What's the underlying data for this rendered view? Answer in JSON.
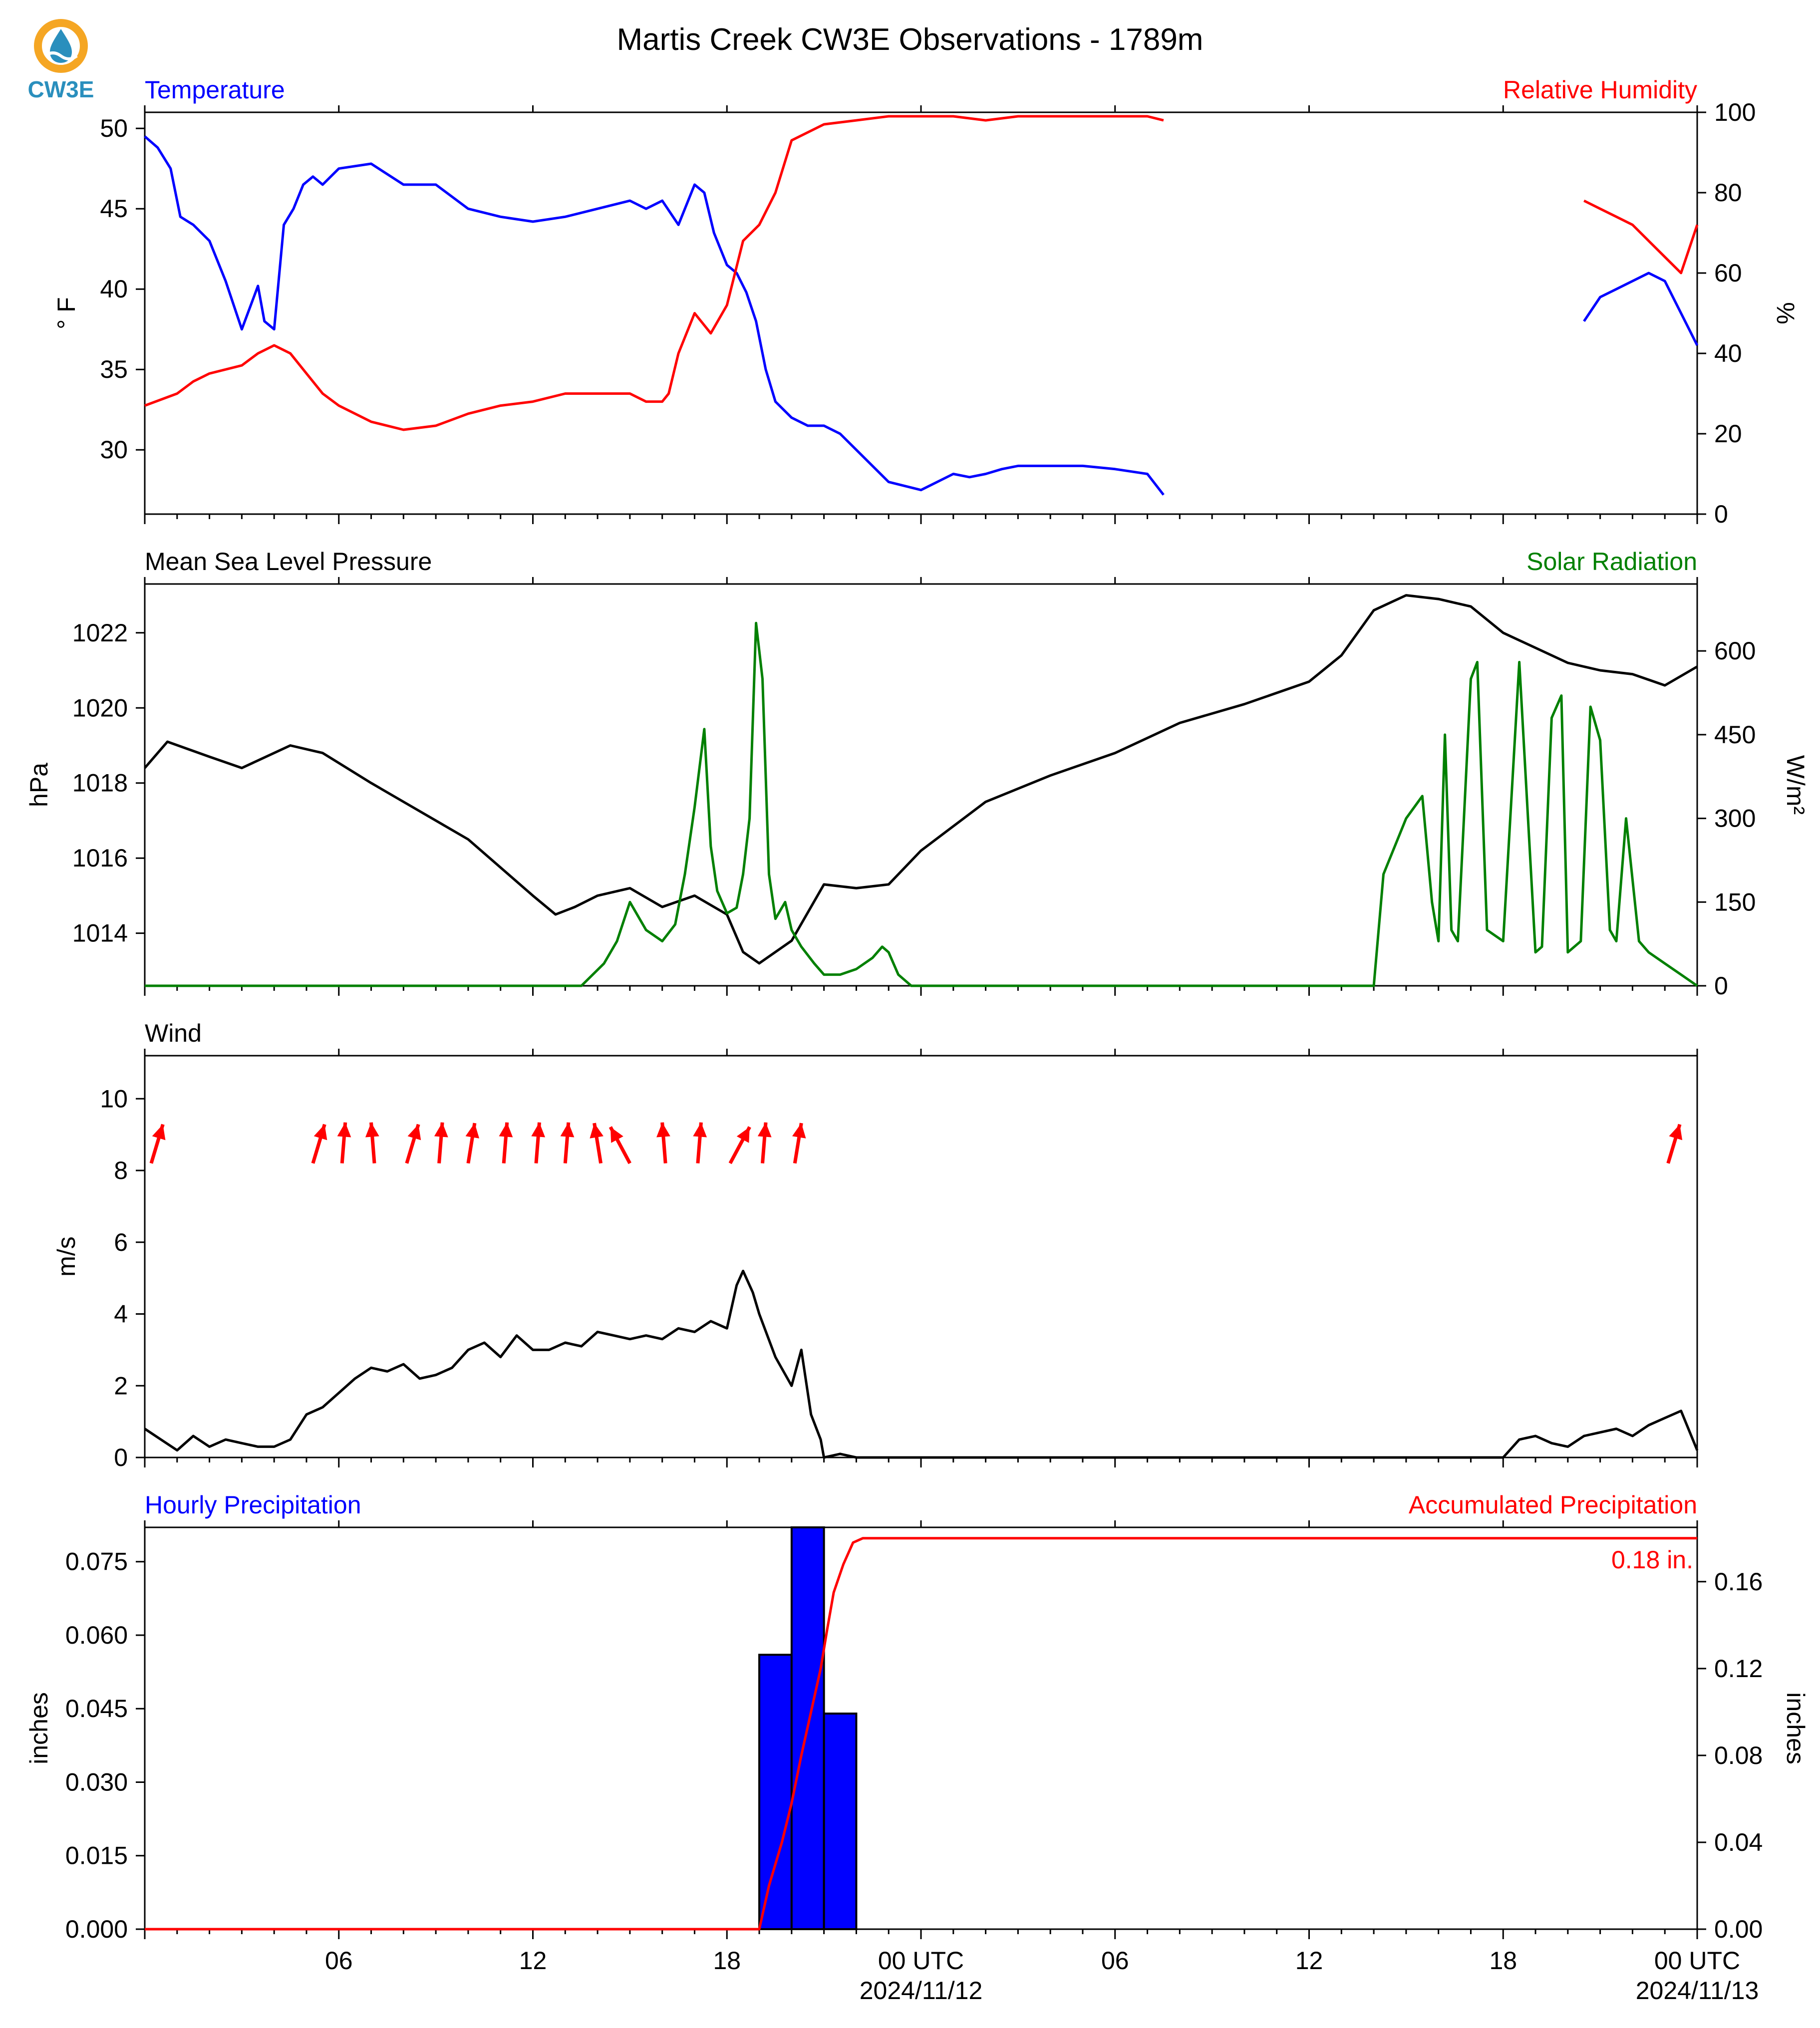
{
  "logo": {
    "text": "CW3E",
    "ring_color": "#f5a623",
    "drop_color": "#2a8fbd"
  },
  "title": "Martis Creek CW3E Observations - 1789m",
  "x_axis": {
    "hours_total": 48,
    "tick_labels": [
      {
        "hour": 6,
        "label": "06"
      },
      {
        "hour": 12,
        "label": "12"
      },
      {
        "hour": 18,
        "label": "18"
      },
      {
        "hour": 24,
        "label": "00 UTC"
      },
      {
        "hour": 30,
        "label": "06"
      },
      {
        "hour": 36,
        "label": "12"
      },
      {
        "hour": 42,
        "label": "18"
      },
      {
        "hour": 48,
        "label": "00 UTC"
      }
    ],
    "date_labels": [
      {
        "hour": 24,
        "label": "2024/11/12"
      },
      {
        "hour": 48,
        "label": "2024/11/13"
      }
    ]
  },
  "panels": {
    "temp_rh": {
      "left_title": "Temperature",
      "right_title": "Relative Humidity",
      "left_ylabel": "° F",
      "right_ylabel": "%",
      "left_ticks": [
        "30",
        "35",
        "40",
        "45",
        "50"
      ],
      "right_ticks": [
        "0",
        "20",
        "40",
        "60",
        "80",
        "100"
      ]
    },
    "pressure_solar": {
      "left_title": "Mean Sea Level Pressure",
      "right_title": "Solar Radiation",
      "left_ylabel": "hPa",
      "right_ylabel": "W/m²",
      "left_ticks": [
        "1014",
        "1016",
        "1018",
        "1020",
        "1022"
      ],
      "right_ticks": [
        "0",
        "150",
        "300",
        "450",
        "600"
      ]
    },
    "wind": {
      "left_title": "Wind",
      "left_ylabel": "m/s",
      "left_ticks": [
        "0",
        "2",
        "4",
        "6",
        "8",
        "10"
      ]
    },
    "precip": {
      "left_title": "Hourly Precipitation",
      "right_title": "Accumulated Precipitation",
      "left_ylabel": "inches",
      "right_ylabel": "inches",
      "left_ticks": [
        "0.000",
        "0.015",
        "0.030",
        "0.045",
        "0.060",
        "0.075"
      ],
      "right_ticks": [
        "0.00",
        "0.04",
        "0.08",
        "0.12",
        "0.16"
      ],
      "total_label": "0.18 in."
    }
  },
  "colors": {
    "temperature": "#0000ff",
    "humidity": "#ff0000",
    "pressure": "#000000",
    "solar": "#008000",
    "wind": "#000000",
    "wind_arrows": "#ff0000",
    "hourly_bars": "#0000ff",
    "accumulated": "#ff0000"
  },
  "chart_data": [
    {
      "type": "line",
      "title": "Temperature",
      "ylabel": "° F",
      "ylim": [
        26,
        51
      ],
      "x_units": "hours since 2024/11/11 00 UTC",
      "series": [
        {
          "name": "Temperature",
          "x": [
            0,
            0.4,
            0.8,
            1.1,
            1.5,
            2,
            2.5,
            3,
            3.5,
            3.7,
            4,
            4.3,
            4.6,
            4.9,
            5.2,
            5.5,
            6,
            7,
            8,
            9,
            10,
            11,
            12,
            13,
            14,
            15,
            15.5,
            16,
            16.5,
            17,
            17.3,
            17.6,
            18,
            18.3,
            18.6,
            18.9,
            19.2,
            19.5,
            20,
            20.5,
            21,
            21.5,
            22,
            23,
            24,
            25,
            25.5,
            26,
            26.5,
            27,
            28,
            29,
            30,
            31,
            31.5
          ],
          "values": [
            49.5,
            48.8,
            47.5,
            44.5,
            44,
            43,
            40.5,
            37.5,
            40.2,
            38,
            37.5,
            44,
            45,
            46.5,
            47,
            46.5,
            47.5,
            47.8,
            46.5,
            46.5,
            45,
            44.5,
            44.2,
            44.5,
            45,
            45.5,
            45,
            45.5,
            44,
            46.5,
            46,
            43.5,
            41.5,
            41,
            39.8,
            38,
            35,
            33,
            32,
            31.5,
            31.5,
            31,
            30,
            28,
            27.5,
            28.5,
            28.3,
            28.5,
            28.8,
            29,
            29,
            29,
            28.8,
            28.5,
            27.2
          ]
        },
        {
          "name": "Temperature (later)",
          "x": [
            44.5,
            45,
            45.5,
            46,
            46.5,
            47,
            47.5,
            48
          ],
          "values": [
            38,
            39.5,
            40,
            40.5,
            41,
            40.5,
            38.5,
            36.5
          ]
        }
      ]
    },
    {
      "type": "line",
      "title": "Relative Humidity",
      "ylabel": "%",
      "ylim": [
        0,
        100
      ],
      "series": [
        {
          "name": "Relative Humidity",
          "x": [
            0,
            1,
            1.5,
            2,
            3,
            3.5,
            4,
            4.5,
            5,
            5.5,
            6,
            7,
            8,
            9,
            10,
            11,
            12,
            13,
            14,
            15,
            15.5,
            16,
            16.2,
            16.5,
            17,
            17.5,
            18,
            18.5,
            19,
            19.5,
            20,
            21,
            22,
            23,
            24,
            25,
            26,
            27,
            28,
            29,
            30,
            31,
            31.5
          ],
          "values": [
            27,
            30,
            33,
            35,
            37,
            40,
            42,
            40,
            35,
            30,
            27,
            23,
            21,
            22,
            25,
            27,
            28,
            30,
            30,
            30,
            28,
            28,
            30,
            40,
            50,
            45,
            52,
            68,
            72,
            80,
            93,
            97,
            98,
            99,
            99,
            99,
            98,
            99,
            99,
            99,
            99,
            99,
            98
          ]
        },
        {
          "name": "Relative Humidity (later)",
          "x": [
            44.5,
            45,
            45.5,
            46,
            46.5,
            47,
            47.5,
            48
          ],
          "values": [
            78,
            76,
            74,
            72,
            68,
            64,
            60,
            72
          ]
        }
      ]
    },
    {
      "type": "line",
      "title": "Mean Sea Level Pressure",
      "ylabel": "hPa",
      "ylim": [
        1012.6,
        1023.3
      ],
      "series": [
        {
          "name": "Mean Sea Level Pressure",
          "x": [
            0,
            0.7,
            2,
            3,
            4.5,
            5.5,
            7,
            8,
            10,
            12,
            12.7,
            13.3,
            14,
            15,
            16,
            17,
            18,
            18.5,
            19,
            20,
            21,
            22,
            23,
            24,
            26,
            28,
            30,
            32,
            34,
            36,
            37,
            38,
            39,
            40,
            41,
            42,
            43,
            44,
            45,
            46,
            47,
            48
          ],
          "values": [
            1018.4,
            1019.1,
            1018.7,
            1018.4,
            1019,
            1018.8,
            1018,
            1017.5,
            1016.5,
            1015,
            1014.5,
            1014.7,
            1015,
            1015.2,
            1014.7,
            1015,
            1014.5,
            1013.5,
            1013.2,
            1013.8,
            1015.3,
            1015.2,
            1015.3,
            1016.2,
            1017.5,
            1018.2,
            1018.8,
            1019.6,
            1020.1,
            1020.7,
            1021.4,
            1022.6,
            1023,
            1022.9,
            1022.7,
            1022,
            1021.6,
            1021.2,
            1021,
            1020.9,
            1020.6,
            1021.1
          ]
        }
      ]
    },
    {
      "type": "line",
      "title": "Solar Radiation",
      "ylabel": "W/m²",
      "ylim": [
        0,
        720
      ],
      "series": [
        {
          "name": "Solar Radiation",
          "x": [
            0,
            13.5,
            14.2,
            14.6,
            15,
            15.5,
            16,
            16.4,
            16.7,
            17,
            17.3,
            17.5,
            17.7,
            18,
            18.3,
            18.5,
            18.7,
            18.9,
            19.1,
            19.3,
            19.5,
            19.8,
            20,
            20.3,
            20.7,
            21,
            21.5,
            22,
            22.5,
            22.8,
            23,
            23.3,
            23.7,
            30,
            38,
            38.3,
            39,
            39.5,
            39.8,
            40,
            40.2,
            40.4,
            40.6,
            41,
            41.2,
            41.5,
            42,
            42.5,
            43,
            43.2,
            43.5,
            43.8,
            44,
            44.4,
            44.7,
            45,
            45.3,
            45.5,
            45.8,
            46.2,
            46.5,
            47,
            47.5,
            48
          ],
          "values": [
            0,
            0,
            40,
            80,
            150,
            100,
            80,
            110,
            200,
            320,
            460,
            250,
            170,
            130,
            140,
            200,
            300,
            650,
            550,
            200,
            120,
            150,
            100,
            70,
            40,
            20,
            20,
            30,
            50,
            70,
            60,
            20,
            0,
            0,
            0,
            200,
            300,
            340,
            150,
            80,
            450,
            100,
            80,
            550,
            580,
            100,
            80,
            580,
            60,
            70,
            480,
            520,
            60,
            80,
            500,
            440,
            100,
            80,
            300,
            80,
            60,
            40,
            20,
            0
          ]
        }
      ]
    },
    {
      "type": "line",
      "title": "Wind",
      "ylabel": "m/s",
      "ylim": [
        0,
        11.2
      ],
      "series": [
        {
          "name": "Wind Speed",
          "x": [
            0,
            0.5,
            1,
            1.5,
            2,
            2.5,
            3,
            3.5,
            4,
            4.5,
            5,
            5.5,
            6,
            6.5,
            7,
            7.5,
            8,
            8.5,
            9,
            9.5,
            10,
            10.5,
            11,
            11.5,
            12,
            12.5,
            13,
            13.5,
            14,
            14.5,
            15,
            15.5,
            16,
            16.5,
            17,
            17.5,
            18,
            18.3,
            18.5,
            18.8,
            19,
            19.5,
            20,
            20.3,
            20.6,
            20.9,
            21,
            21.5,
            22,
            30,
            40,
            42,
            42.5,
            43,
            43.5,
            44,
            44.5,
            45,
            45.5,
            46,
            46.5,
            47,
            47.5,
            48
          ],
          "values": [
            0.8,
            0.5,
            0.2,
            0.6,
            0.3,
            0.5,
            0.4,
            0.3,
            0.3,
            0.5,
            1.2,
            1.4,
            1.8,
            2.2,
            2.5,
            2.4,
            2.6,
            2.2,
            2.3,
            2.5,
            3,
            3.2,
            2.8,
            3.4,
            3,
            3,
            3.2,
            3.1,
            3.5,
            3.4,
            3.3,
            3.4,
            3.3,
            3.6,
            3.5,
            3.8,
            3.6,
            4.8,
            5.2,
            4.6,
            4,
            2.8,
            2,
            3,
            1.2,
            0.5,
            0,
            0.1,
            0,
            0,
            0,
            0,
            0.5,
            0.6,
            0.4,
            0.3,
            0.6,
            0.7,
            0.8,
            0.6,
            0.9,
            1.1,
            1.3,
            0.2
          ]
        }
      ],
      "wind_direction_arrows": [
        {
          "hour": 0.2,
          "dx": 0.18,
          "dy": 0.6
        },
        {
          "hour": 5.2,
          "dx": 0.18,
          "dy": 0.6
        },
        {
          "hour": 6.1,
          "dx": 0.05,
          "dy": 0.63
        },
        {
          "hour": 7.1,
          "dx": -0.05,
          "dy": 0.63
        },
        {
          "hour": 8.1,
          "dx": 0.18,
          "dy": 0.6
        },
        {
          "hour": 9.1,
          "dx": 0.05,
          "dy": 0.63
        },
        {
          "hour": 10,
          "dx": 0.1,
          "dy": 0.62
        },
        {
          "hour": 11.1,
          "dx": 0.05,
          "dy": 0.63
        },
        {
          "hour": 12.1,
          "dx": 0.05,
          "dy": 0.63
        },
        {
          "hour": 13,
          "dx": 0.05,
          "dy": 0.63
        },
        {
          "hour": 14.1,
          "dx": -0.1,
          "dy": 0.62
        },
        {
          "hour": 15,
          "dx": -0.3,
          "dy": 0.56
        },
        {
          "hour": 16.1,
          "dx": -0.05,
          "dy": 0.63
        },
        {
          "hour": 17.1,
          "dx": 0.05,
          "dy": 0.63
        },
        {
          "hour": 18.1,
          "dx": 0.3,
          "dy": 0.56
        },
        {
          "hour": 19.1,
          "dx": 0.05,
          "dy": 0.63
        },
        {
          "hour": 20.1,
          "dx": 0.1,
          "dy": 0.62
        },
        {
          "hour": 47.1,
          "dx": 0.18,
          "dy": 0.6
        }
      ]
    },
    {
      "type": "bar",
      "title": "Hourly Precipitation",
      "ylabel": "inches",
      "ylim": [
        0,
        0.082
      ],
      "bars": [
        {
          "hour_start": 19,
          "hour_end": 20,
          "value": 0.056
        },
        {
          "hour_start": 20,
          "hour_end": 21,
          "value": 0.082
        },
        {
          "hour_start": 21,
          "hour_end": 22,
          "value": 0.044
        }
      ]
    },
    {
      "type": "line",
      "title": "Accumulated Precipitation",
      "ylabel": "inches",
      "ylim": [
        0,
        0.185
      ],
      "series": [
        {
          "name": "Accumulated Precipitation",
          "x": [
            0,
            19,
            19.3,
            19.7,
            20,
            20.3,
            20.6,
            20.9,
            21.1,
            21.3,
            21.6,
            21.9,
            22.2,
            48
          ],
          "values": [
            0,
            0,
            0.02,
            0.04,
            0.058,
            0.08,
            0.1,
            0.12,
            0.138,
            0.155,
            0.168,
            0.178,
            0.18,
            0.18
          ]
        }
      ]
    }
  ]
}
